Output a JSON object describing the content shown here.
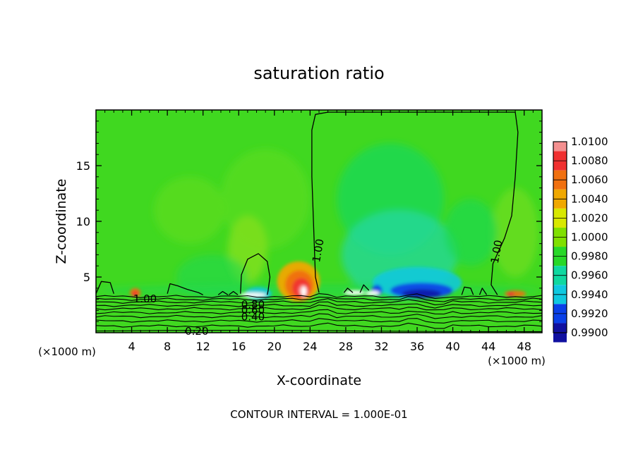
{
  "chart_data": {
    "type": "heatmap",
    "title": "saturation ratio",
    "xlabel": "X-coordinate",
    "ylabel": "Z-coordinate",
    "x_unit_label_left": "(×1000 m)",
    "x_unit_label_right": "(×1000 m)",
    "xlim": [
      0,
      50
    ],
    "ylim": [
      0,
      20
    ],
    "x_ticks": [
      4,
      8,
      12,
      16,
      20,
      24,
      28,
      32,
      36,
      40,
      44,
      48
    ],
    "x_tick_labels": [
      "4",
      "8",
      "12",
      "16",
      "20",
      "24",
      "28",
      "32",
      "36",
      "40",
      "44",
      "48"
    ],
    "y_ticks": [
      5,
      10,
      15
    ],
    "y_tick_labels": [
      "5",
      "10",
      "15"
    ],
    "contour_interval_text": "CONTOUR INTERVAL = 1.000E-01",
    "contour_labels": [
      {
        "text": "1.00",
        "x": 5.5,
        "z": 3.1
      },
      {
        "text": "1.00",
        "x": 25.3,
        "z": 7.7
      },
      {
        "text": "1.00",
        "x": 45.3,
        "z": 7.6
      },
      {
        "text": "0.80",
        "x": 17.6,
        "z": 2.6
      },
      {
        "text": "0.60",
        "x": 17.6,
        "z": 2.1
      },
      {
        "text": "0.40",
        "x": 17.6,
        "z": 1.5
      },
      {
        "text": "0.20",
        "x": 11.3,
        "z": 0.2
      }
    ],
    "colorbar": {
      "levels": [
        "1.0100",
        "1.0080",
        "1.0060",
        "1.0040",
        "1.0020",
        "1.0000",
        "0.9980",
        "0.9960",
        "0.9940",
        "0.9920",
        "0.9900"
      ],
      "colors": [
        "#f49090",
        "#f03030",
        "#f07010",
        "#f0a800",
        "#d8e800",
        "#80e000",
        "#28d828",
        "#10d8a0",
        "#10c8e0",
        "#0a40e8",
        "#1010a0",
        "#6010a0"
      ]
    },
    "field_colors": {
      "background": "#40d820",
      "near_one": "#56dc1e",
      "slightly_super": "#7ce01c",
      "slightly_sub": "#20d850",
      "sub_mid": "#20d8a0",
      "sub_strong": "#10c8e0",
      "dry_blue": "#0a40e8",
      "deep_blue": "#1010a0",
      "super_yellow": "#f0a800",
      "super_orange": "#f07010",
      "super_red": "#f03030",
      "super_pink": "#f49090",
      "cloud_white": "#ffffff"
    }
  }
}
